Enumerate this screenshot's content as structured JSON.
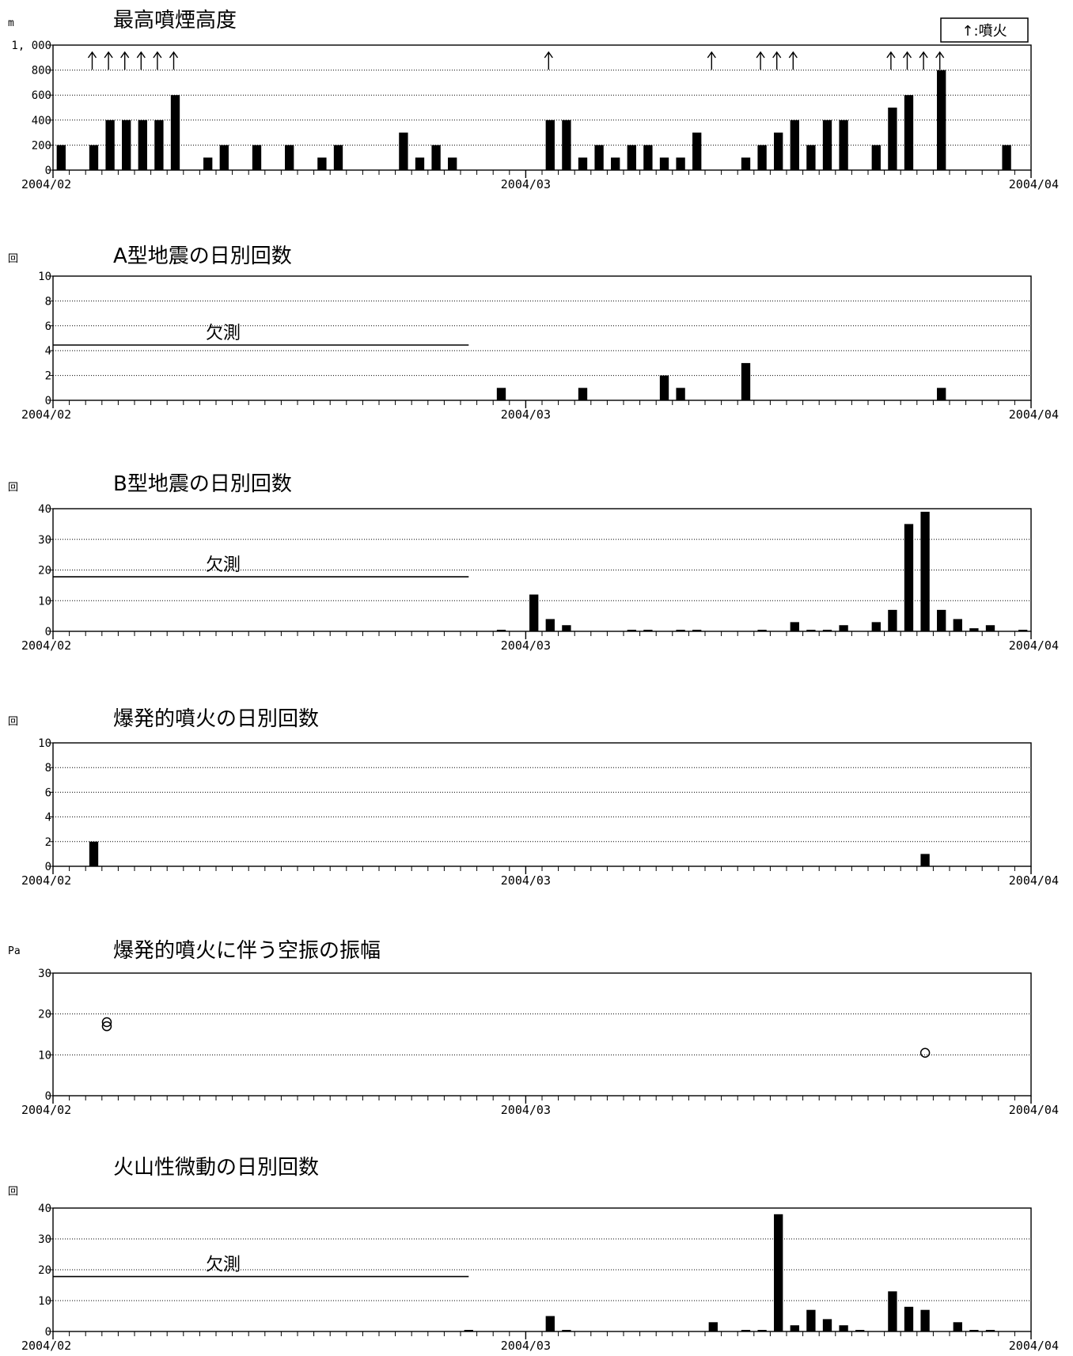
{
  "legend": {
    "text": "↑:噴火"
  },
  "chart_data": [
    {
      "type": "bar",
      "title": "最高噴煙高度",
      "unit": "m",
      "yticks": [
        "0",
        "200",
        "400",
        "600",
        "800",
        "1, 000"
      ],
      "ylim": [
        0,
        1000
      ],
      "x_labels": [
        "2004/02",
        "2004/03",
        "2004/04"
      ],
      "grid": true,
      "bars": [
        {
          "day": 1,
          "value": 200
        },
        {
          "day": 3,
          "value": 200
        },
        {
          "day": 4,
          "value": 400
        },
        {
          "day": 5,
          "value": 400
        },
        {
          "day": 6,
          "value": 400
        },
        {
          "day": 7,
          "value": 400
        },
        {
          "day": 8,
          "value": 600
        },
        {
          "day": 10,
          "value": 100
        },
        {
          "day": 11,
          "value": 200
        },
        {
          "day": 13,
          "value": 200
        },
        {
          "day": 15,
          "value": 200
        },
        {
          "day": 17,
          "value": 100
        },
        {
          "day": 18,
          "value": 200
        },
        {
          "day": 22,
          "value": 300
        },
        {
          "day": 23,
          "value": 100
        },
        {
          "day": 24,
          "value": 200
        },
        {
          "day": 25,
          "value": 100
        },
        {
          "day": 31,
          "value": 400
        },
        {
          "day": 32,
          "value": 400
        },
        {
          "day": 33,
          "value": 100
        },
        {
          "day": 34,
          "value": 200
        },
        {
          "day": 35,
          "value": 100
        },
        {
          "day": 36,
          "value": 200
        },
        {
          "day": 37,
          "value": 200
        },
        {
          "day": 38,
          "value": 100
        },
        {
          "day": 39,
          "value": 100
        },
        {
          "day": 40,
          "value": 300
        },
        {
          "day": 43,
          "value": 100
        },
        {
          "day": 44,
          "value": 200
        },
        {
          "day": 45,
          "value": 300
        },
        {
          "day": 46,
          "value": 400
        },
        {
          "day": 47,
          "value": 200
        },
        {
          "day": 48,
          "value": 400
        },
        {
          "day": 49,
          "value": 400
        },
        {
          "day": 51,
          "value": 200
        },
        {
          "day": 52,
          "value": 500
        },
        {
          "day": 53,
          "value": 600
        },
        {
          "day": 55,
          "value": 800
        },
        {
          "day": 59,
          "value": 200
        }
      ],
      "eruption_days": [
        3,
        4,
        5,
        6,
        7,
        8,
        31,
        41,
        44,
        45,
        46,
        52,
        53,
        54,
        55
      ]
    },
    {
      "type": "bar",
      "title": "A型地震の日別回数",
      "unit": "回",
      "yticks": [
        "0",
        "2",
        "4",
        "6",
        "8",
        "10"
      ],
      "ylim": [
        0,
        10
      ],
      "x_labels": [
        "2004/02",
        "2004/03",
        "2004/04"
      ],
      "grid": true,
      "missing_label": "欠測",
      "missing_until_day": 25.5,
      "bars": [
        {
          "day": 28,
          "value": 1
        },
        {
          "day": 33,
          "value": 1
        },
        {
          "day": 38,
          "value": 2
        },
        {
          "day": 39,
          "value": 1
        },
        {
          "day": 43,
          "value": 3
        },
        {
          "day": 55,
          "value": 1
        }
      ]
    },
    {
      "type": "bar",
      "title": "B型地震の日別回数",
      "unit": "回",
      "yticks": [
        "0",
        "10",
        "20",
        "30",
        "40"
      ],
      "ylim": [
        0,
        40
      ],
      "x_labels": [
        "2004/02",
        "2004/03",
        "2004/04"
      ],
      "grid": true,
      "missing_label": "欠測",
      "missing_until_day": 25.5,
      "bars": [
        {
          "day": 28,
          "value": 0.5
        },
        {
          "day": 30,
          "value": 12
        },
        {
          "day": 31,
          "value": 4
        },
        {
          "day": 32,
          "value": 2
        },
        {
          "day": 36,
          "value": 0.5
        },
        {
          "day": 37,
          "value": 0.5
        },
        {
          "day": 39,
          "value": 0.5
        },
        {
          "day": 40,
          "value": 0.5
        },
        {
          "day": 44,
          "value": 0.5
        },
        {
          "day": 46,
          "value": 3
        },
        {
          "day": 47,
          "value": 0.5
        },
        {
          "day": 48,
          "value": 0.5
        },
        {
          "day": 49,
          "value": 2
        },
        {
          "day": 51,
          "value": 3
        },
        {
          "day": 52,
          "value": 7
        },
        {
          "day": 53,
          "value": 35
        },
        {
          "day": 54,
          "value": 39
        },
        {
          "day": 55,
          "value": 7
        },
        {
          "day": 56,
          "value": 4
        },
        {
          "day": 57,
          "value": 1
        },
        {
          "day": 58,
          "value": 2
        },
        {
          "day": 60,
          "value": 0.5
        }
      ]
    },
    {
      "type": "bar",
      "title": "爆発的噴火の日別回数",
      "unit": "回",
      "yticks": [
        "0",
        "2",
        "4",
        "6",
        "8",
        "10"
      ],
      "ylim": [
        0,
        10
      ],
      "x_labels": [
        "2004/02",
        "2004/03",
        "2004/04"
      ],
      "grid": true,
      "bars": [
        {
          "day": 3,
          "value": 2
        },
        {
          "day": 54,
          "value": 1
        }
      ]
    },
    {
      "type": "scatter",
      "title": "爆発的噴火に伴う空振の振幅",
      "unit": "Pa",
      "yticks": [
        "0",
        "10",
        "20",
        "30"
      ],
      "ylim": [
        0,
        30
      ],
      "x_labels": [
        "2004/02",
        "2004/03",
        "2004/04"
      ],
      "grid": true,
      "points": [
        {
          "day": 3.8,
          "value": 18
        },
        {
          "day": 3.8,
          "value": 17
        },
        {
          "day": 54,
          "value": 10.5
        }
      ]
    },
    {
      "type": "bar",
      "title": "火山性微動の日別回数",
      "unit": "回",
      "yticks": [
        "0",
        "10",
        "20",
        "30",
        "40"
      ],
      "ylim": [
        0,
        40
      ],
      "x_labels": [
        "2004/02",
        "2004/03",
        "2004/04"
      ],
      "grid": true,
      "missing_label": "欠測",
      "missing_until_day": 25.5,
      "bars": [
        {
          "day": 26,
          "value": 0.5
        },
        {
          "day": 31,
          "value": 5
        },
        {
          "day": 32,
          "value": 0.5
        },
        {
          "day": 41,
          "value": 3
        },
        {
          "day": 43,
          "value": 0.5
        },
        {
          "day": 44,
          "value": 0.5
        },
        {
          "day": 45,
          "value": 38
        },
        {
          "day": 46,
          "value": 2
        },
        {
          "day": 47,
          "value": 7
        },
        {
          "day": 48,
          "value": 4
        },
        {
          "day": 49,
          "value": 2
        },
        {
          "day": 50,
          "value": 0.5
        },
        {
          "day": 52,
          "value": 13
        },
        {
          "day": 53,
          "value": 8
        },
        {
          "day": 54,
          "value": 7
        },
        {
          "day": 56,
          "value": 3
        },
        {
          "day": 57,
          "value": 0.5
        },
        {
          "day": 58,
          "value": 0.5
        }
      ]
    }
  ]
}
